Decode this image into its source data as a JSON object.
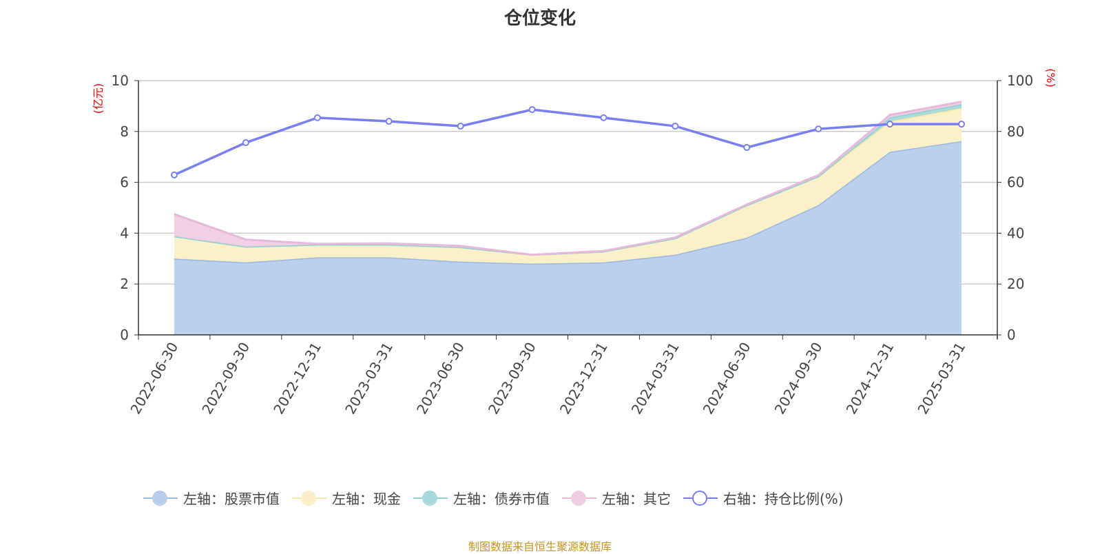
{
  "chart_data": {
    "type": "area",
    "title": "仓位变化",
    "categories": [
      "2022-06-30",
      "2022-09-30",
      "2022-12-31",
      "2023-03-31",
      "2023-06-30",
      "2023-09-30",
      "2023-12-31",
      "2024-03-31",
      "2024-06-30",
      "2024-09-30",
      "2024-12-31",
      "2025-03-31"
    ],
    "left_axis": {
      "label": "(亿元)",
      "ylim": [
        0,
        10
      ],
      "ticks": [
        "0",
        "2",
        "4",
        "6",
        "8",
        "10"
      ]
    },
    "right_axis": {
      "label": "(%)",
      "ylim": [
        0,
        100
      ],
      "ticks": [
        "0",
        "20",
        "40",
        "60",
        "80",
        "100"
      ]
    },
    "grid": true,
    "legend_position": "bottom",
    "series": [
      {
        "name": "左轴：股票市值",
        "axis": "left",
        "stacked": true,
        "color": "#9bb8e2",
        "fill": "#b8cdea",
        "values": [
          3.0,
          2.85,
          3.05,
          3.05,
          2.88,
          2.8,
          2.85,
          3.15,
          3.82,
          5.1,
          7.2,
          7.62
        ]
      },
      {
        "name": "左轴：现金",
        "axis": "left",
        "stacked": true,
        "color": "#f7e6a6",
        "fill": "#faefc6",
        "values": [
          0.88,
          0.62,
          0.5,
          0.5,
          0.57,
          0.35,
          0.43,
          0.65,
          1.28,
          1.13,
          1.2,
          1.3
        ]
      },
      {
        "name": "左轴：债券市值",
        "axis": "left",
        "stacked": true,
        "color": "#8fd0d0",
        "fill": "#a6d9d9",
        "values": [
          0,
          0,
          0,
          0,
          0,
          0,
          0,
          0,
          0,
          0,
          0.15,
          0.15
        ]
      },
      {
        "name": "左轴：其它",
        "axis": "left",
        "stacked": true,
        "color": "#e6b9da",
        "fill": "#eecde4",
        "values": [
          0.87,
          0.28,
          0.03,
          0.05,
          0.05,
          0,
          0.02,
          0.03,
          0.03,
          0.05,
          0.1,
          0.1
        ]
      },
      {
        "name": "右轴：持仓比例(%)",
        "axis": "right",
        "stacked": false,
        "color": "#7a7ef3",
        "values": [
          62.9,
          75.6,
          85.4,
          84.0,
          82.1,
          88.6,
          85.4,
          82.1,
          73.7,
          81.0,
          82.9,
          82.9
        ]
      }
    ]
  },
  "footer": "制图数据来自恒生聚源数据库"
}
